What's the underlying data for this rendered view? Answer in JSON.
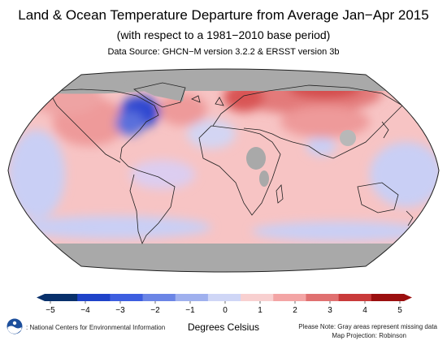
{
  "title": "Land & Ocean Temperature Departure from Average Jan−Apr 2015",
  "subtitle": "(with respect to a 1981−2010 base period)",
  "source": "Data Source: GHCN−M version 3.2.2 & ERSST version 3b",
  "colorbar": {
    "ticks": [
      "−5",
      "−4",
      "−3",
      "−2",
      "−1",
      "0",
      "1",
      "2",
      "3",
      "4",
      "5"
    ],
    "label": "Degrees Celsius",
    "range": [
      -5,
      5
    ],
    "colors": [
      "#08306b",
      "#1f43c9",
      "#3d5ee0",
      "#6b85e6",
      "#9fb0ee",
      "#cfd6f6",
      "#f8d0d0",
      "#f3a5a5",
      "#e07070",
      "#c93a3a",
      "#9b0f0f"
    ]
  },
  "footer": {
    "org": ": National Centers for Environmental Information",
    "note": "Please Note: Gray areas represent missing data",
    "projection": "Map Projection: Robinson"
  },
  "colors": {
    "missing": "#a9a9a9",
    "warm_light": "#f7c4c4",
    "warm": "#ee9a9a",
    "warm_strong": "#d95454",
    "cool_light": "#c9cff5",
    "cool_strong": "#2d47d0",
    "coast": "#202020"
  }
}
